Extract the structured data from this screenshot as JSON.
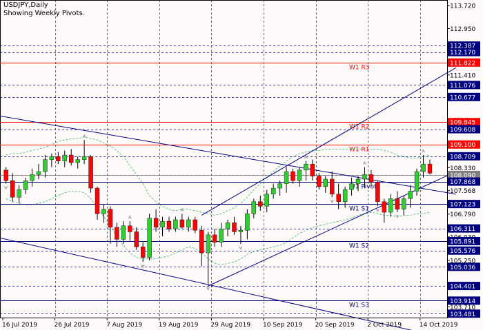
{
  "header": {
    "symbol": "USDJPY,Daily",
    "subtitle": "Showing Weekly Pivots."
  },
  "colors": {
    "background": "#fffafa",
    "grid": "#000000",
    "bull_candle": "#32cd32",
    "bear_candle": "#ff0000",
    "wick": "#000000",
    "trendline": "#000080",
    "pivot_line": "#000080",
    "resistance_line": "#ff0000",
    "level_line": "#000080",
    "bollinger": "#3cb371",
    "current_price_label": "#808080"
  },
  "chart_data": {
    "type": "candlestick",
    "title": "USDJPY,Daily",
    "subtitle": "Showing Weekly Pivots.",
    "ylim": [
      103.35,
      113.9
    ],
    "y_ticks": [
      "113.720",
      "112.950",
      "112.387",
      "112.170",
      "111.822",
      "111.410",
      "111.076",
      "110.677",
      "109.845",
      "109.608",
      "109.100",
      "108.709",
      "108.330",
      "108.090",
      "107.868",
      "107.568",
      "107.123",
      "106.790",
      "106.311",
      "106.030",
      "105.891",
      "105.576",
      "105.250",
      "105.036",
      "104.401",
      "103.914",
      "103.710",
      "103.481"
    ],
    "x_labels": [
      "16 Jul 2019",
      "26 Jul 2019",
      "7 Aug 2019",
      "19 Aug 2019",
      "29 Aug 2019",
      "10 Sep 2019",
      "20 Sep 2019",
      "2 Oct 2019",
      "14 Oct 2019"
    ],
    "x_label_index": [
      0,
      8,
      16,
      24,
      32,
      40,
      48,
      56,
      64
    ],
    "candles": [
      [
        108.25,
        108.35,
        107.8,
        107.9
      ],
      [
        107.9,
        108.15,
        107.2,
        107.35
      ],
      [
        107.35,
        107.75,
        107.15,
        107.6
      ],
      [
        107.6,
        108.0,
        107.45,
        107.9
      ],
      [
        107.9,
        108.3,
        107.7,
        108.1
      ],
      [
        108.1,
        108.45,
        107.95,
        108.2
      ],
      [
        108.2,
        108.75,
        108.0,
        108.6
      ],
      [
        108.6,
        108.8,
        108.35,
        108.7
      ],
      [
        108.7,
        108.85,
        108.45,
        108.55
      ],
      [
        108.55,
        108.9,
        108.35,
        108.75
      ],
      [
        108.75,
        108.95,
        108.4,
        108.5
      ],
      [
        108.5,
        108.7,
        108.3,
        108.6
      ],
      [
        108.6,
        109.25,
        108.45,
        108.7
      ],
      [
        108.7,
        108.75,
        107.5,
        107.65
      ],
      [
        107.65,
        107.7,
        106.6,
        106.8
      ],
      [
        106.8,
        107.1,
        106.5,
        106.95
      ],
      [
        106.95,
        107.05,
        105.8,
        106.35
      ],
      [
        106.35,
        106.5,
        105.7,
        105.95
      ],
      [
        105.95,
        106.55,
        105.8,
        106.4
      ],
      [
        106.4,
        106.55,
        105.9,
        106.2
      ],
      [
        106.2,
        106.35,
        105.6,
        105.7
      ],
      [
        105.7,
        105.85,
        105.2,
        105.35
      ],
      [
        105.35,
        106.8,
        105.25,
        106.65
      ],
      [
        106.65,
        106.95,
        106.2,
        106.35
      ],
      [
        106.35,
        106.7,
        106.05,
        106.55
      ],
      [
        106.55,
        106.7,
        106.2,
        106.3
      ],
      [
        106.3,
        106.7,
        106.2,
        106.6
      ],
      [
        106.6,
        106.8,
        106.3,
        106.35
      ],
      [
        106.35,
        106.7,
        106.2,
        106.6
      ],
      [
        106.6,
        106.7,
        106.15,
        106.25
      ],
      [
        106.25,
        106.4,
        105.05,
        105.5
      ],
      [
        105.5,
        106.2,
        104.45,
        106.1
      ],
      [
        106.1,
        106.3,
        105.7,
        105.85
      ],
      [
        105.85,
        106.5,
        105.7,
        106.3
      ],
      [
        106.3,
        106.6,
        106.05,
        106.5
      ],
      [
        106.5,
        106.7,
        106.1,
        106.2
      ],
      [
        106.2,
        106.4,
        105.8,
        106.25
      ],
      [
        106.25,
        106.95,
        105.95,
        106.8
      ],
      [
        106.8,
        107.3,
        106.65,
        107.2
      ],
      [
        107.2,
        107.4,
        106.9,
        107.05
      ],
      [
        107.05,
        107.6,
        106.85,
        107.45
      ],
      [
        107.45,
        107.8,
        107.3,
        107.65
      ],
      [
        107.65,
        107.9,
        107.4,
        107.8
      ],
      [
        107.8,
        108.35,
        107.5,
        108.2
      ],
      [
        108.2,
        108.3,
        107.8,
        107.9
      ],
      [
        107.9,
        108.35,
        107.7,
        108.25
      ],
      [
        108.25,
        108.55,
        107.9,
        108.45
      ],
      [
        108.45,
        108.6,
        107.9,
        108.05
      ],
      [
        108.05,
        108.15,
        107.6,
        107.7
      ],
      [
        107.7,
        108.05,
        107.5,
        107.95
      ],
      [
        107.95,
        108.2,
        107.35,
        107.45
      ],
      [
        107.45,
        107.8,
        106.95,
        107.2
      ],
      [
        107.2,
        107.7,
        107.0,
        107.6
      ],
      [
        107.6,
        108.0,
        107.4,
        107.8
      ],
      [
        107.8,
        108.05,
        107.55,
        107.95
      ],
      [
        107.95,
        108.35,
        107.65,
        108.1
      ],
      [
        108.1,
        108.25,
        107.7,
        107.85
      ],
      [
        107.85,
        107.9,
        107.05,
        107.2
      ],
      [
        107.2,
        107.3,
        106.5,
        106.85
      ],
      [
        106.85,
        107.45,
        106.7,
        107.3
      ],
      [
        107.3,
        107.55,
        106.85,
        106.95
      ],
      [
        106.95,
        107.4,
        106.75,
        107.3
      ],
      [
        107.3,
        107.75,
        107.0,
        107.55
      ],
      [
        107.55,
        108.3,
        107.4,
        108.2
      ],
      [
        108.2,
        108.75,
        108.0,
        108.45
      ],
      [
        108.45,
        108.6,
        108.1,
        108.15
      ]
    ],
    "pivot_levels": [
      {
        "name": "W1 R3",
        "value": 111.822,
        "color": "#ff0000"
      },
      {
        "name": "W1 R2",
        "value": 109.845,
        "color": "#ff0000"
      },
      {
        "name": "W1 R1",
        "value": 109.1,
        "color": "#ff0000"
      },
      {
        "name": "W1 Pivot",
        "value": 107.868,
        "color": "#000080"
      },
      {
        "name": "W1 S1",
        "value": 107.123,
        "color": "#000080"
      },
      {
        "name": "W1 S2",
        "value": 105.891,
        "color": "#000080"
      },
      {
        "name": "W1 S3",
        "value": 103.914,
        "color": "#000080"
      }
    ],
    "dashed_levels": [
      112.387,
      112.17,
      111.076,
      110.677,
      109.608,
      108.709,
      108.09,
      106.311,
      105.576,
      105.036,
      104.401,
      103.481
    ],
    "current_price": 108.09,
    "trendlines": [
      {
        "from": [
          -1,
          110.05
        ],
        "to": [
          69,
          107.45
        ]
      },
      {
        "from": [
          -1,
          106.0
        ],
        "to": [
          69,
          102.6
        ]
      },
      {
        "from": [
          31,
          104.4
        ],
        "to": [
          69,
          108.2
        ]
      },
      {
        "from": [
          30,
          106.75
        ],
        "to": [
          69,
          111.65
        ]
      }
    ],
    "bollinger_upper": [
      108.75,
      108.8,
      108.8,
      108.85,
      108.9,
      108.95,
      109.0,
      109.1,
      109.2,
      109.25,
      109.3,
      109.3,
      109.35,
      109.3,
      109.25,
      109.15,
      109.05,
      108.9,
      108.7,
      108.4,
      108.1,
      107.8,
      107.4,
      107.2,
      107.05,
      106.95,
      106.9,
      106.95,
      106.95,
      106.9,
      106.85,
      106.8,
      106.75,
      106.8,
      106.9,
      107.0,
      107.15,
      107.35,
      107.6,
      107.8,
      108.0,
      108.2,
      108.4,
      108.55,
      108.7,
      108.8,
      108.85,
      108.9,
      108.9,
      108.95,
      108.95,
      108.95,
      108.95,
      108.95,
      108.95,
      108.95,
      108.95,
      108.95,
      108.9,
      108.85,
      108.75,
      108.7,
      108.65,
      108.65,
      108.7,
      108.75
    ],
    "bollinger_lower": [
      107.3,
      107.2,
      107.15,
      107.1,
      107.1,
      107.15,
      107.2,
      107.3,
      107.4,
      107.5,
      107.55,
      107.55,
      107.5,
      107.3,
      107.0,
      106.7,
      106.4,
      106.05,
      105.75,
      105.5,
      105.35,
      105.3,
      105.3,
      105.3,
      105.35,
      105.4,
      105.5,
      105.6,
      105.7,
      105.65,
      105.5,
      105.3,
      105.15,
      105.1,
      105.15,
      105.2,
      105.3,
      105.45,
      105.55,
      105.6,
      105.65,
      105.7,
      105.75,
      105.85,
      106.0,
      106.15,
      106.25,
      106.35,
      106.4,
      106.45,
      106.5,
      106.55,
      106.6,
      106.65,
      106.75,
      106.8,
      106.85,
      106.8,
      106.75,
      106.75,
      106.7,
      106.75,
      106.75,
      106.8,
      106.8,
      106.85
    ],
    "fractal_up_index": [
      12,
      19,
      27,
      46,
      55,
      64
    ],
    "fractal_down_index": [
      0,
      21,
      31,
      36,
      50,
      57,
      60
    ]
  }
}
